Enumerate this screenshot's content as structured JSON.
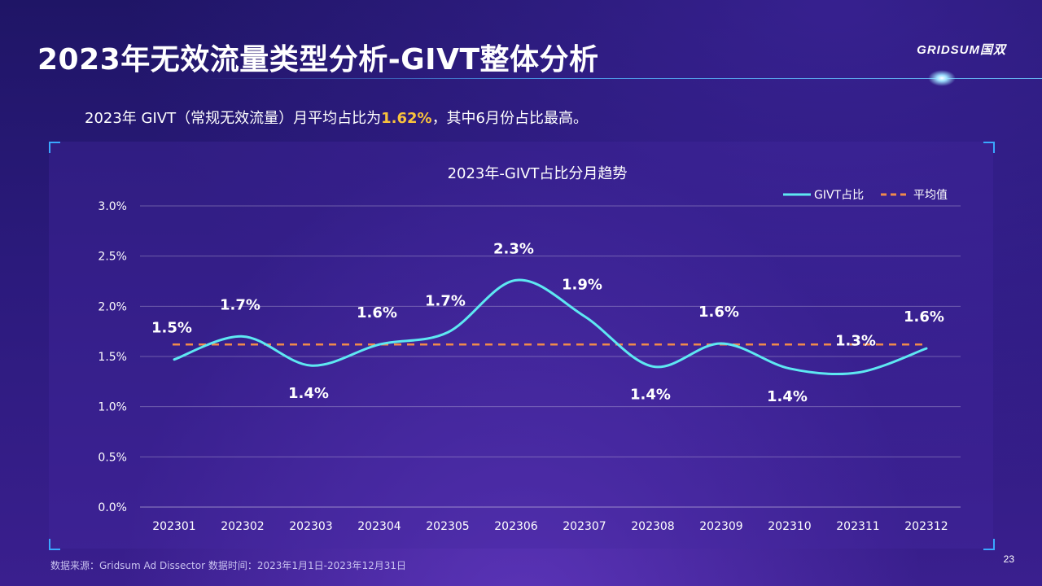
{
  "page": {
    "title": "2023年无效流量类型分析-GIVT整体分析",
    "logo": "GRIDSUM国双",
    "subtitle_pre": "2023年 GIVT（常规无效流量）月平均占比为",
    "subtitle_highlight": "1.62%",
    "subtitle_post": "，其中6月份占比最高。",
    "source": "数据来源：Gridsum Ad Dissector 数据时间：2023年1月1日-2023年12月31日",
    "page_number": "23"
  },
  "colors": {
    "line": "#5ee8f2",
    "average": "#f08a4b",
    "highlight": "#f9c23c"
  },
  "chart_data": {
    "type": "line",
    "title": "2023年-GIVT占比分月趋势",
    "categories": [
      "202301",
      "202302",
      "202303",
      "202304",
      "202305",
      "202306",
      "202307",
      "202308",
      "202309",
      "202310",
      "202311",
      "202312"
    ],
    "series": [
      {
        "name": "GIVT占比",
        "values": [
          1.47,
          1.7,
          1.41,
          1.62,
          1.74,
          2.26,
          1.9,
          1.4,
          1.63,
          1.38,
          1.34,
          1.58
        ],
        "labels": [
          "1.5%",
          "1.7%",
          "1.4%",
          "1.6%",
          "1.7%",
          "2.3%",
          "1.9%",
          "1.4%",
          "1.6%",
          "1.4%",
          "1.3%",
          "1.6%"
        ],
        "label_side": [
          "above",
          "above",
          "below",
          "above",
          "above",
          "above",
          "above",
          "below",
          "above",
          "below",
          "above",
          "above"
        ]
      },
      {
        "name": "平均值",
        "values": [
          1.62,
          1.62,
          1.62,
          1.62,
          1.62,
          1.62,
          1.62,
          1.62,
          1.62,
          1.62,
          1.62,
          1.62
        ],
        "style": "dashed"
      }
    ],
    "yticks": [
      "0.0%",
      "0.5%",
      "1.0%",
      "1.5%",
      "2.0%",
      "2.5%",
      "3.0%"
    ],
    "ylim": [
      0,
      3.0
    ],
    "grid": true,
    "legend": "top-right"
  }
}
